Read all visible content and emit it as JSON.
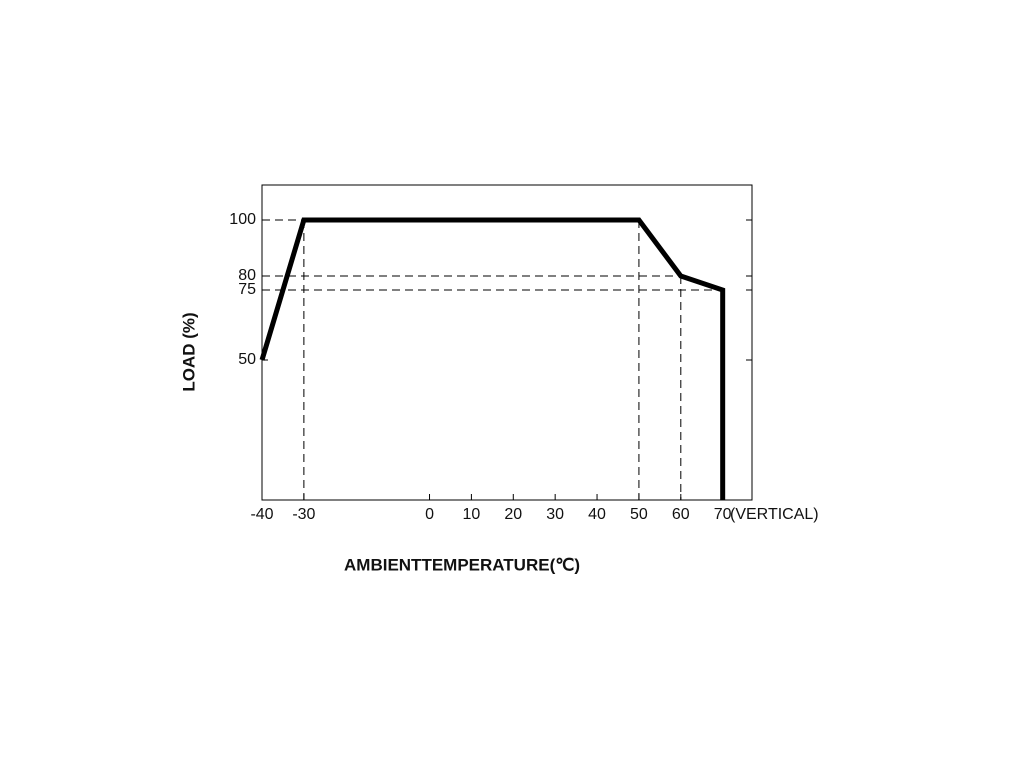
{
  "chart_data": {
    "type": "line",
    "x_label": "AMBIENTTEMPERATURE(℃)",
    "y_label": "LOAD (%)",
    "x_note": "(VERTICAL)",
    "x": [
      -40,
      -30,
      50,
      60,
      70,
      70
    ],
    "series": [
      {
        "name": "LOAD",
        "color": "#000000",
        "values": [
          50,
          100,
          100,
          80,
          75,
          0
        ]
      }
    ],
    "xlim": [
      -40,
      77
    ],
    "ylim": [
      0,
      112.5
    ],
    "xticks": [
      -40,
      -30,
      0,
      10,
      20,
      30,
      40,
      50,
      60,
      70
    ],
    "yticks": [
      50,
      75,
      80,
      100
    ],
    "grid": false
  }
}
